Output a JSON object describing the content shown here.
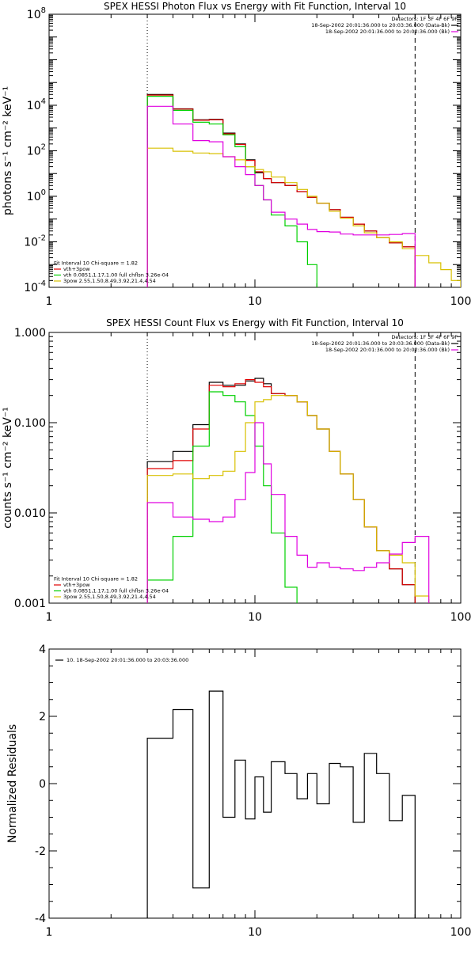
{
  "chart_data": [
    {
      "type": "line",
      "title": "SPEX HESSI Photon Flux vs Energy with Fit Function, Interval 10",
      "ylabel": "photons s⁻¹ cm⁻² keV⁻¹",
      "xlabel": "",
      "x_scale": "log",
      "y_scale": "log",
      "xlim": [
        1,
        100
      ],
      "ylim": [
        0.0001,
        100000000
      ],
      "x_ticks": [
        1,
        10,
        100
      ],
      "x_tick_labels": [
        "1",
        "10",
        "100"
      ],
      "y_ticks": [
        0.0001,
        0.01,
        1,
        100,
        10000,
        100000000
      ],
      "y_tick_labels": [
        {
          "base": "10",
          "exp": "-4"
        },
        {
          "base": "10",
          "exp": "-2"
        },
        {
          "base": "10",
          "exp": "0"
        },
        {
          "base": "10",
          "exp": "2"
        },
        {
          "base": "10",
          "exp": "4"
        },
        {
          "base": "10",
          "exp": "8"
        }
      ],
      "vlines": [
        {
          "x": 3,
          "style": "dotted"
        },
        {
          "x": 60,
          "style": "dashed"
        }
      ],
      "legend_topright": [
        {
          "text": "Detectors: 1F 3F 4F 6F 9F",
          "color": null
        },
        {
          "text": "18-Sep-2002 20:01:36.000 to 20:03:36.000 (Data-Bk)",
          "color": "#000000"
        },
        {
          "text": "18-Sep-2002 20:01:36.000 to 20:02:36.000 (Bk)",
          "color": "#e000e0"
        }
      ],
      "legend_bottomleft": [
        {
          "text": "Fit Interval 10   Chi-square = 1.82",
          "color": null
        },
        {
          "text": "vth+3pow",
          "color": "#e00000"
        },
        {
          "text": "vth 0.0851,1.17,1.00  full chflsn 3.26e-04",
          "color": "#00d000"
        },
        {
          "text": "3pow 2.55,1.50,8.49,3.92,21.4,4.54",
          "color": "#d8c000"
        }
      ],
      "edges": [
        3,
        4,
        5,
        6,
        7,
        8,
        9,
        10,
        11,
        12,
        14,
        16,
        18,
        20,
        23,
        26,
        30,
        34,
        39,
        45,
        52,
        60,
        70,
        80,
        90,
        100
      ],
      "series": [
        {
          "name": "Data-Bk",
          "color": "#000000",
          "values": [
            30000,
            7000,
            2300,
            2400,
            600,
            200,
            40,
            11,
            6,
            4,
            3,
            1.6,
            0.9,
            0.5,
            0.26,
            0.12,
            0.06,
            0.03,
            0.015,
            0.009,
            0.006
          ]
        },
        {
          "name": "vth+3pow",
          "color": "#e00000",
          "values": [
            28000,
            6800,
            2200,
            2300,
            560,
            190,
            38,
            12,
            6,
            4,
            3,
            1.6,
            0.9,
            0.5,
            0.26,
            0.12,
            0.06,
            0.03,
            0.015,
            0.009,
            0.006
          ]
        },
        {
          "name": "vth",
          "color": "#00d000",
          "values": [
            25000,
            6000,
            1800,
            1500,
            500,
            150,
            20,
            3,
            0.7,
            0.15,
            0.05,
            0.01,
            0.001,
            8e-05
          ]
        },
        {
          "name": "3pow",
          "color": "#d8c000",
          "values": [
            130,
            95,
            80,
            75,
            55,
            40,
            20,
            15,
            12,
            7,
            4,
            2,
            1,
            0.5,
            0.22,
            0.11,
            0.05,
            0.025,
            0.015,
            0.01,
            0.005,
            0.0025,
            0.0012,
            0.0006,
            0.0002
          ]
        },
        {
          "name": "Bk",
          "color": "#e000e0",
          "values": [
            9000,
            1500,
            280,
            250,
            55,
            20,
            9,
            3,
            0.7,
            0.2,
            0.1,
            0.06,
            0.035,
            0.028,
            0.027,
            0.022,
            0.02,
            0.02,
            0.02,
            0.021,
            0.023
          ]
        }
      ]
    },
    {
      "type": "line",
      "title": "SPEX HESSI Count Flux vs Energy with Fit Function, Interval 10",
      "ylabel": "counts s⁻¹ cm⁻² keV⁻¹",
      "xlabel": "",
      "x_scale": "log",
      "y_scale": "log",
      "xlim": [
        1,
        100
      ],
      "ylim": [
        0.001,
        1
      ],
      "x_ticks": [
        1,
        10,
        100
      ],
      "x_tick_labels": [
        "1",
        "10",
        "100"
      ],
      "y_ticks": [
        0.001,
        0.01,
        0.1,
        1
      ],
      "y_tick_labels": [
        "0.001",
        "0.010",
        "0.100",
        "1.000"
      ],
      "vlines": [
        {
          "x": 3,
          "style": "dotted"
        },
        {
          "x": 60,
          "style": "dashed"
        }
      ],
      "legend_topright": [
        {
          "text": "Detectors: 1F 3F 4F 6F 9F",
          "color": null
        },
        {
          "text": "18-Sep-2002 20:01:36.000 to 20:03:36.000 (Data-Bk)",
          "color": "#000000"
        },
        {
          "text": "18-Sep-2002 20:01:36.000 to 20:02:36.000 (Bk)",
          "color": "#e000e0"
        }
      ],
      "legend_bottomleft": [
        {
          "text": "Fit Interval 10   Chi-square = 1.82",
          "color": null
        },
        {
          "text": "vth+3pow",
          "color": "#e00000"
        },
        {
          "text": "vth 0.0851,1.17,1.00  full chflsn 3.26e-04",
          "color": "#00d000"
        },
        {
          "text": "3pow 2.55,1.50,8.49,3.92,21.4,4.54",
          "color": "#d8c000"
        }
      ],
      "edges": [
        3,
        4,
        5,
        6,
        7,
        8,
        9,
        10,
        11,
        12,
        14,
        16,
        18,
        20,
        23,
        26,
        30,
        34,
        39,
        45,
        52,
        60,
        70
      ],
      "series": [
        {
          "name": "Data-Bk",
          "color": "#000000",
          "values": [
            0.037,
            0.048,
            0.095,
            0.28,
            0.26,
            0.26,
            0.29,
            0.31,
            0.27,
            0.21,
            0.2,
            0.17,
            0.12,
            0.085,
            0.048,
            0.027,
            0.014,
            0.007,
            0.0038,
            0.0024,
            0.0016
          ]
        },
        {
          "name": "vth+3pow",
          "color": "#e00000",
          "values": [
            0.031,
            0.038,
            0.085,
            0.26,
            0.25,
            0.27,
            0.3,
            0.28,
            0.25,
            0.21,
            0.2,
            0.17,
            0.12,
            0.085,
            0.048,
            0.027,
            0.014,
            0.007,
            0.0038,
            0.0024,
            0.0016
          ]
        },
        {
          "name": "vth",
          "color": "#00d000",
          "values": [
            0.0018,
            0.0055,
            0.055,
            0.22,
            0.2,
            0.17,
            0.12,
            0.055,
            0.02,
            0.006,
            0.0015,
            0.0008
          ]
        },
        {
          "name": "3pow",
          "color": "#d8c000",
          "values": [
            0.026,
            0.027,
            0.024,
            0.026,
            0.029,
            0.048,
            0.1,
            0.17,
            0.18,
            0.2,
            0.2,
            0.17,
            0.12,
            0.085,
            0.048,
            0.027,
            0.014,
            0.007,
            0.0038,
            0.0034,
            0.0028,
            0.0012
          ]
        },
        {
          "name": "Bk",
          "color": "#e000e0",
          "values": [
            0.013,
            0.009,
            0.0085,
            0.008,
            0.009,
            0.014,
            0.028,
            0.1,
            0.035,
            0.016,
            0.0055,
            0.0034,
            0.0025,
            0.0028,
            0.0025,
            0.0024,
            0.0023,
            0.0025,
            0.0028,
            0.0035,
            0.0047,
            0.0055
          ]
        }
      ]
    },
    {
      "type": "line",
      "title": "",
      "ylabel": "Normalized Residuals",
      "xlabel": "",
      "x_scale": "log",
      "y_scale": "linear",
      "xlim": [
        1,
        100
      ],
      "ylim": [
        -4,
        4
      ],
      "x_ticks": [
        1,
        10,
        100
      ],
      "x_tick_labels": [
        "1",
        "10",
        "100"
      ],
      "y_ticks": [
        -4,
        -2,
        0,
        2,
        4
      ],
      "y_tick_labels": [
        "-4",
        "-2",
        "0",
        "2",
        "4"
      ],
      "legend_topleft": [
        {
          "text": "10. 18-Sep-2002 20:01:36.000 to 20:03:36.000",
          "color": "#000000"
        }
      ],
      "edges": [
        3,
        4,
        5,
        6,
        7,
        8,
        9,
        10,
        11,
        12,
        14,
        16,
        18,
        20,
        23,
        26,
        30,
        34,
        39,
        45,
        52,
        60
      ],
      "series": [
        {
          "name": "10. 18-Sep-2002 20:01:36.000 to 20:03:36.000",
          "color": "#000000",
          "values": [
            1.35,
            2.2,
            -3.1,
            2.75,
            -1.0,
            0.7,
            -1.05,
            0.2,
            -0.85,
            0.65,
            0.3,
            -0.45,
            0.3,
            -0.6,
            0.6,
            0.5,
            -1.15,
            0.9,
            0.3,
            -1.1,
            -0.35
          ]
        }
      ]
    }
  ]
}
